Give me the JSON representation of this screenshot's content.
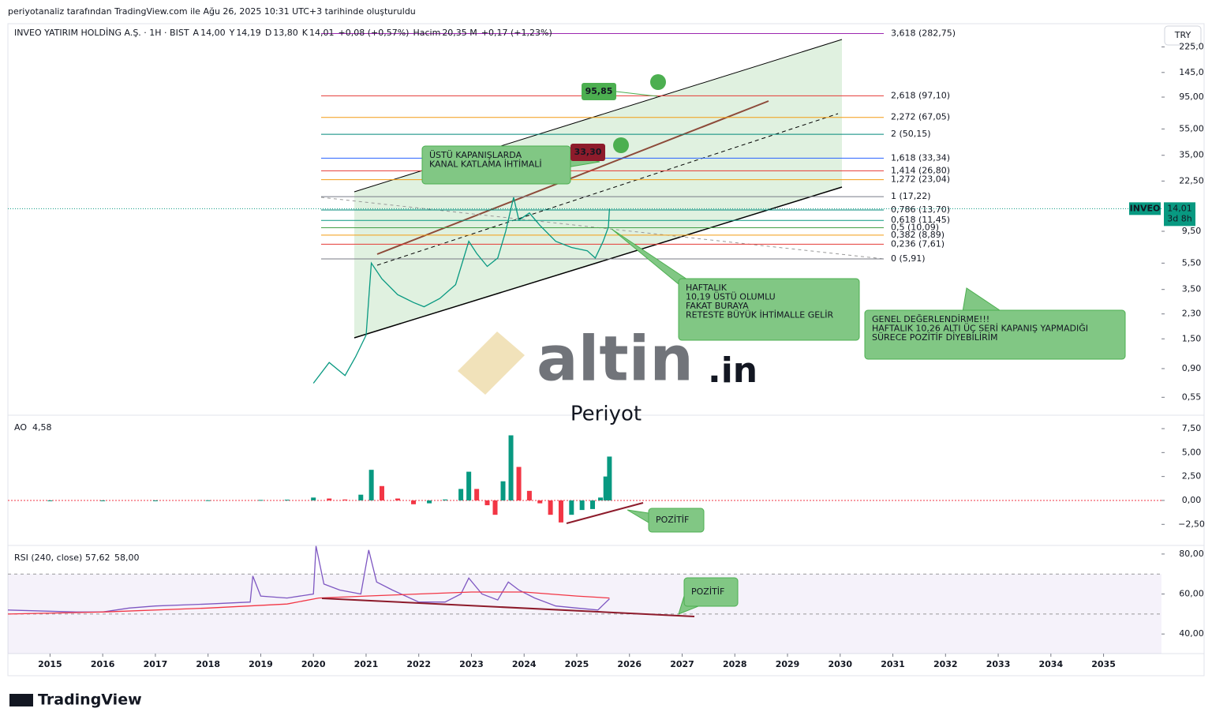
{
  "header": {
    "attribution": "periyotanaliz tarafından TradingView.com ile Ağu 26, 2025 10:31 UTC+3 tarihinde oluşturuldu"
  },
  "legend": {
    "symbol": "INVEO YATIRIM HOLDİNG A.Ş. · 1H · BIST",
    "items": [
      {
        "label": "A",
        "value": "14,00"
      },
      {
        "label": "Y",
        "value": "14,19"
      },
      {
        "label": "D",
        "value": "13,80"
      },
      {
        "label": "K",
        "value": "14,01"
      }
    ],
    "change": "+0,08 (+0,57%)",
    "volume_label": "Hacim",
    "volume": "20,35 M",
    "volume_change": "+0,17 (+1,23%)"
  },
  "currency": "TRY",
  "last_price": {
    "symbol": "INVEO",
    "price": "14,01",
    "countdown": "3d 8h"
  },
  "chart_data": {
    "type": "line",
    "log_scale": true,
    "color": "#089981",
    "x": [
      2020.0,
      2020.3,
      2020.6,
      2020.8,
      2021.0,
      2021.1,
      2021.3,
      2021.6,
      2021.9,
      2022.1,
      2022.4,
      2022.7,
      2022.95,
      2023.1,
      2023.3,
      2023.5,
      2023.65,
      2023.8,
      2023.9,
      2024.1,
      2024.3,
      2024.6,
      2024.9,
      2025.2,
      2025.35,
      2025.5,
      2025.6,
      2025.62
    ],
    "values": [
      0.7,
      1.0,
      0.8,
      1.1,
      1.6,
      5.5,
      4.2,
      3.2,
      2.8,
      2.6,
      3.0,
      3.8,
      8.0,
      6.5,
      5.2,
      6.0,
      9.5,
      17.0,
      11.5,
      13.0,
      10.5,
      8.0,
      7.2,
      6.8,
      6.0,
      8.0,
      10.2,
      14.01
    ],
    "xlim": [
      2014.2,
      2036.1
    ],
    "xticks": [
      2015,
      2016,
      2017,
      2018,
      2019,
      2020,
      2021,
      2022,
      2023,
      2024,
      2025,
      2026,
      2027,
      2028,
      2029,
      2030,
      2031,
      2032,
      2033,
      2034,
      2035
    ],
    "ylim": [
      0.41,
      313
    ],
    "yticks": [
      {
        "value": 225,
        "label": "225,0"
      },
      {
        "value": 145,
        "label": "145,0"
      },
      {
        "value": 95,
        "label": "95,00"
      },
      {
        "value": 55,
        "label": "55,00"
      },
      {
        "value": 35,
        "label": "35,00"
      },
      {
        "value": 22.5,
        "label": "22,50"
      },
      {
        "value": 9.5,
        "label": "9,50"
      },
      {
        "value": 5.5,
        "label": "5,50"
      },
      {
        "value": 3.5,
        "label": "3,50"
      },
      {
        "value": 2.3,
        "label": "2,30"
      },
      {
        "value": 1.5,
        "label": "1,50"
      },
      {
        "value": 0.9,
        "label": "0,90"
      },
      {
        "value": 0.55,
        "label": "0,55"
      }
    ],
    "fib_levels": [
      {
        "value": 282.75,
        "label": "3,618 (282,75)",
        "color": "#9c27b0"
      },
      {
        "value": 97.1,
        "label": "2,618 (97,10)",
        "color": "#e53935"
      },
      {
        "value": 67.05,
        "label": "2,272 (67,05)",
        "color": "#f39c12"
      },
      {
        "value": 50.15,
        "label": "2 (50,15)",
        "color": "#00897b"
      },
      {
        "value": 33.34,
        "label": "1,618 (33,34)",
        "color": "#2962ff"
      },
      {
        "value": 26.8,
        "label": "1,414 (26,80)",
        "color": "#e53935"
      },
      {
        "value": 23.04,
        "label": "1,272 (23,04)",
        "color": "#f39c12"
      },
      {
        "value": 17.22,
        "label": "1 (17,22)",
        "color": "#787b86"
      },
      {
        "value": 13.7,
        "label": "0,786 (13,70)",
        "color": "#00897b"
      },
      {
        "value": 11.45,
        "label": "0,618 (11,45)",
        "color": "#089981"
      },
      {
        "value": 10.09,
        "label": "0,5 (10,09)",
        "color": "#43a047"
      },
      {
        "value": 8.89,
        "label": "0,382 (8,89)",
        "color": "#f39c12"
      },
      {
        "value": 7.61,
        "label": "0,236 (7,61)",
        "color": "#e53935"
      },
      {
        "value": 5.91,
        "label": "0 (5,91)",
        "color": "#787b86"
      }
    ]
  },
  "ao": {
    "title": "AO",
    "last": "4,58",
    "type": "bar",
    "x": [
      2015.0,
      2016.0,
      2017.0,
      2018.0,
      2019.0,
      2019.5,
      2020.0,
      2020.3,
      2020.6,
      2020.9,
      2021.1,
      2021.3,
      2021.6,
      2021.9,
      2022.2,
      2022.5,
      2022.8,
      2022.95,
      2023.1,
      2023.3,
      2023.45,
      2023.6,
      2023.75,
      2023.9,
      2024.1,
      2024.3,
      2024.5,
      2024.7,
      2024.9,
      2025.1,
      2025.3,
      2025.45,
      2025.55,
      2025.62
    ],
    "values": [
      0,
      0,
      0,
      0.02,
      0.05,
      0.08,
      0.3,
      0.2,
      0.1,
      0.6,
      3.2,
      1.5,
      0.2,
      -0.4,
      -0.3,
      0.1,
      1.2,
      3.0,
      1.2,
      -0.5,
      -1.5,
      2.0,
      6.8,
      3.5,
      1.0,
      -0.3,
      -1.5,
      -2.3,
      -1.5,
      -1.0,
      -0.9,
      0.3,
      2.5,
      4.58
    ],
    "ylim": [
      -4.62,
      8.82
    ],
    "yticks": [
      {
        "value": 7.5,
        "label": "7,50"
      },
      {
        "value": 5,
        "label": "5,00"
      },
      {
        "value": 2.5,
        "label": "2,50"
      },
      {
        "value": 0,
        "label": "0,00"
      },
      {
        "value": -2.5,
        "label": "−2,50"
      }
    ]
  },
  "rsi": {
    "title": "RSI (240, close)",
    "last": "57,62",
    "ma_last": "58,00",
    "type": "line",
    "series": [
      {
        "name": "RSI",
        "color": "#7e57c2",
        "x": [
          2014.2,
          2015.5,
          2016,
          2016.5,
          2017,
          2018,
          2018.8,
          2018.85,
          2019,
          2019.5,
          2020.0,
          2020.05,
          2020.2,
          2020.5,
          2020.9,
          2021.05,
          2021.2,
          2021.5,
          2022,
          2022.5,
          2022.8,
          2022.95,
          2023.2,
          2023.5,
          2023.7,
          2023.9,
          2024.2,
          2024.6,
          2025.0,
          2025.4,
          2025.62
        ],
        "values": [
          52,
          51,
          51,
          53,
          54,
          55,
          56,
          69,
          59,
          58,
          60,
          84,
          65,
          62,
          60,
          82,
          66,
          62,
          56,
          56,
          60,
          68,
          60,
          57,
          66,
          62,
          58,
          54,
          53,
          52,
          57.62
        ]
      },
      {
        "name": "MA",
        "color": "#f23645",
        "x": [
          2014.2,
          2016,
          2018,
          2019.5,
          2020.1,
          2021,
          2022,
          2023,
          2024,
          2025,
          2025.62
        ],
        "values": [
          50,
          51,
          53,
          55,
          58,
          59,
          60,
          61,
          61,
          59,
          58
        ]
      }
    ],
    "ylim": [
      30.2,
      83.9
    ],
    "yticks": [
      {
        "value": 80,
        "label": "80,00"
      },
      {
        "value": 60,
        "label": "60,00"
      },
      {
        "value": 40,
        "label": "40,00"
      }
    ]
  },
  "annotations": {
    "channel": [
      "ÜSTÜ KAPANIŞLARDA",
      "KANAL KATLAMA İHTİMALİ"
    ],
    "weekly": [
      "HAFTALIK",
      "10,19 ÜSTÜ OLUMLU",
      "FAKAT BURAYA",
      "RETESTE BÜYÜK İHTİMALLE GELİR"
    ],
    "general": [
      "GENEL DEĞERLENDİRME!!!",
      "HAFTALIK 10,26 ALTI ÜÇ SERİ KAPANIŞ YAPMADIĞI",
      "SÜRECE POZİTİF DİYEBİLİRİM"
    ],
    "ao_note": "POZİTİF",
    "rsi_note": "POZİTİF",
    "target_high": "95,85",
    "target_low": "33,30"
  },
  "watermark": {
    "brand": "altin",
    "domain": ".in",
    "author": "Periyot"
  },
  "footer": {
    "brand": "TradingView"
  }
}
